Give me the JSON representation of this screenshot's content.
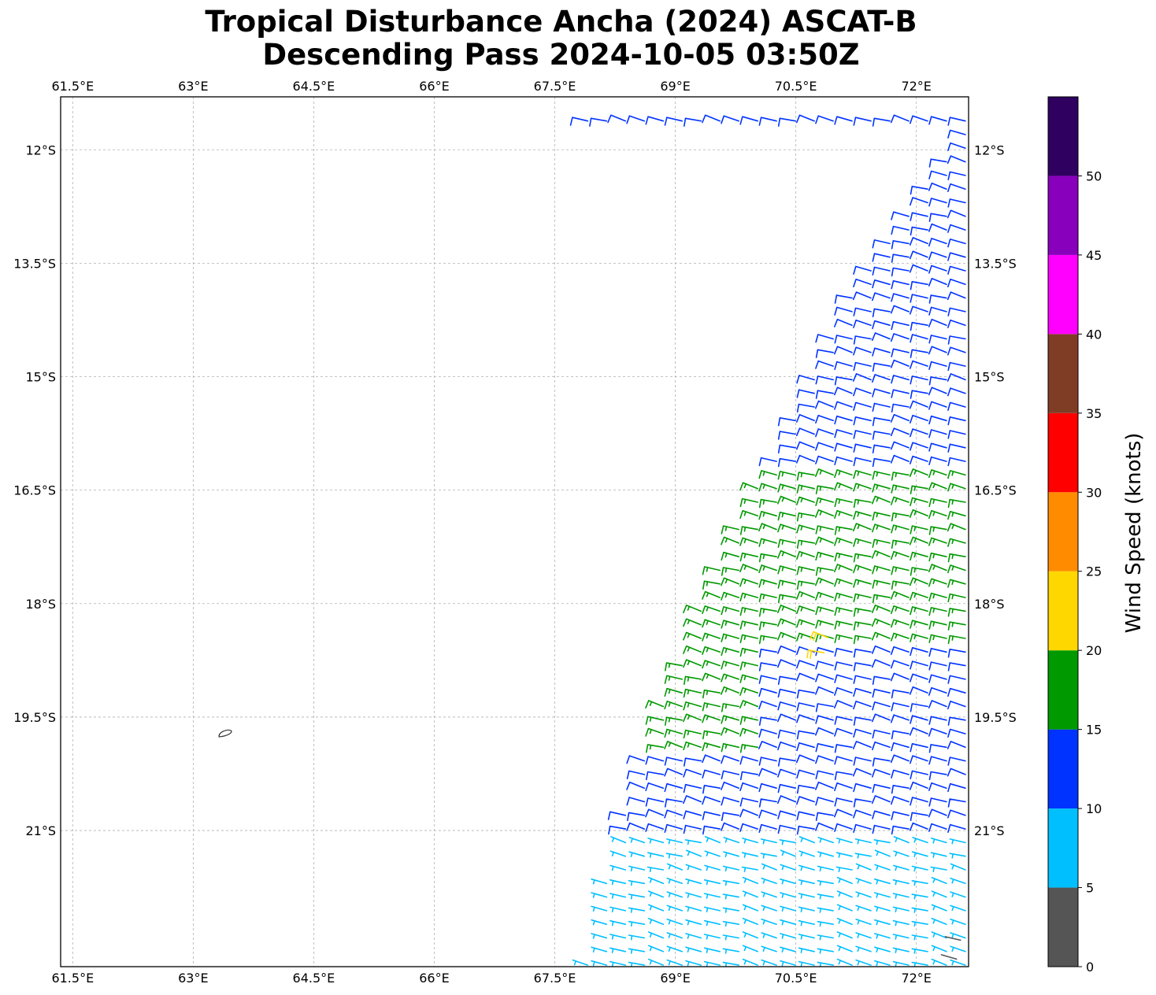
{
  "title": {
    "line1": "Tropical Disturbance Ancha (2024) ASCAT-B",
    "line2": "Descending Pass 2024-10-05 03:50Z"
  },
  "map": {
    "lon_range": [
      61.35,
      72.65
    ],
    "lat_range": [
      -22.8,
      -11.3
    ],
    "lon_ticks": [
      61.5,
      63,
      64.5,
      66,
      67.5,
      69,
      70.5,
      72
    ],
    "lon_labels": [
      "61.5°E",
      "63°E",
      "64.5°E",
      "66°E",
      "67.5°E",
      "69°E",
      "70.5°E",
      "72°E"
    ],
    "lat_ticks": [
      -12,
      -13.5,
      -15,
      -16.5,
      -18,
      -19.5,
      -21
    ],
    "lat_labels": [
      "12°S",
      "13.5°S",
      "15°S",
      "16.5°S",
      "18°S",
      "19.5°S",
      "21°S"
    ],
    "gridlines": true,
    "island": {
      "lon": 63.4,
      "lat": -19.72
    }
  },
  "colorbar": {
    "label": "Wind Speed (knots)",
    "bounds": [
      0,
      5,
      10,
      15,
      20,
      25,
      30,
      35,
      40,
      45,
      50,
      55
    ],
    "tick_labels": [
      "0",
      "5",
      "10",
      "15",
      "20",
      "25",
      "30",
      "35",
      "40",
      "45",
      "50"
    ],
    "colors": [
      "#555555",
      "#00bfff",
      "#0033ff",
      "#009900",
      "#ffd700",
      "#ff8c00",
      "#ff0000",
      "#803d26",
      "#ff00ff",
      "#8800bb",
      "#300060"
    ]
  },
  "swath": {
    "east_edge_lon": 72.65,
    "west_edge": [
      [
        -11.7,
        72.6
      ],
      [
        -13.5,
        71.4
      ],
      [
        -15.0,
        70.7
      ],
      [
        -16.5,
        70.0
      ],
      [
        -18.0,
        69.3
      ],
      [
        -19.5,
        68.8
      ],
      [
        -21.0,
        68.3
      ],
      [
        -22.8,
        67.9
      ]
    ],
    "speed_zones": [
      {
        "lat_min": -16.2,
        "lat_max": -11.6,
        "speed": 12
      },
      {
        "lat_min": -18.5,
        "lat_max": -16.2,
        "speed": 17
      },
      {
        "lat_min": -19.9,
        "lat_max": -18.5,
        "speed": 13,
        "west_speed": 16,
        "west_cut_lon": 70.1
      },
      {
        "lat_min": -21.0,
        "lat_max": -19.9,
        "speed": 12
      },
      {
        "lat_min": -22.8,
        "lat_max": -21.0,
        "speed": 7
      }
    ],
    "highlights": [
      {
        "lat": -18.45,
        "lon": 70.9,
        "speed": 21
      },
      {
        "lat": -18.65,
        "lon": 70.85,
        "speed": 21
      },
      {
        "lat": -22.45,
        "lon": 72.55,
        "speed": 3
      },
      {
        "lat": -22.7,
        "lon": 72.5,
        "speed": 3
      }
    ]
  }
}
